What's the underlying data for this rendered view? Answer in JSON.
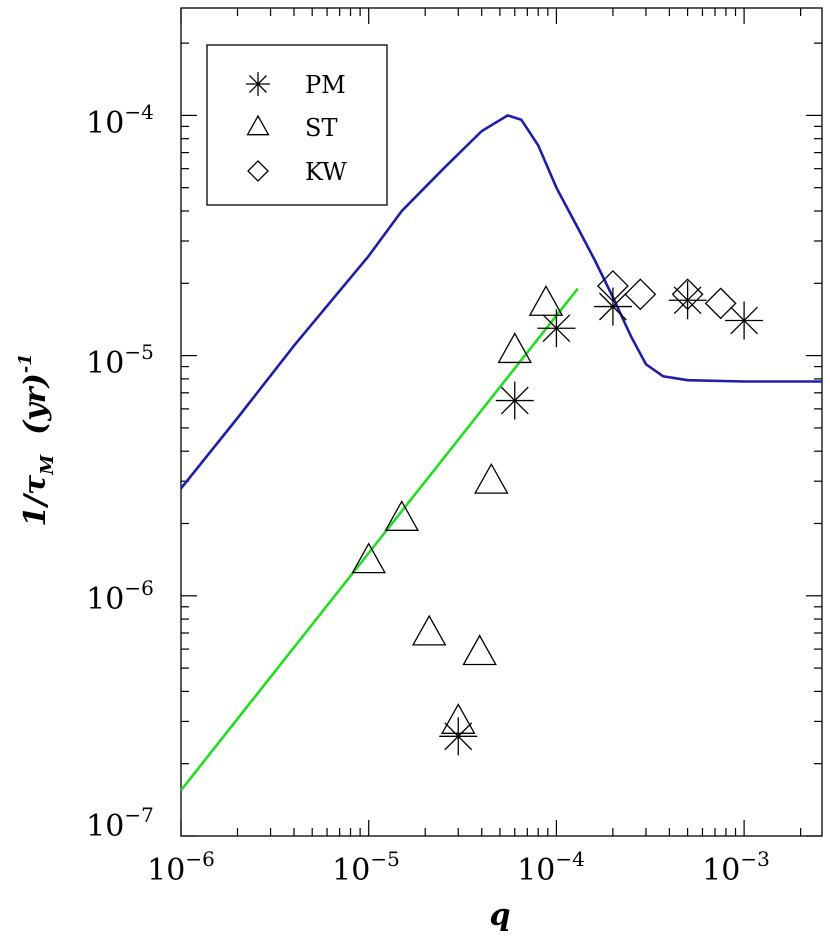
{
  "chart_data": {
    "type": "scatter",
    "xscale": "log",
    "yscale": "log",
    "xlim": [
      1e-06,
      0.0026
    ],
    "ylim": [
      1e-07,
      0.00028
    ],
    "xlabel": "q",
    "ylabel": {
      "prefix": "1/τ",
      "subscript": "M",
      "unit_open": "(yr)",
      "exponent": "-1"
    },
    "x_ticks": [
      {
        "base": "10",
        "exp": "−6",
        "value": 1e-06
      },
      {
        "base": "10",
        "exp": "−5",
        "value": 1e-05
      },
      {
        "base": "10",
        "exp": "−4",
        "value": 0.0001
      },
      {
        "base": "10",
        "exp": "−3",
        "value": 0.001
      }
    ],
    "y_ticks": [
      {
        "base": "10",
        "exp": "−7",
        "value": 1e-07
      },
      {
        "base": "10",
        "exp": "−6",
        "value": 1e-06
      },
      {
        "base": "10",
        "exp": "−5",
        "value": 1e-05
      },
      {
        "base": "10",
        "exp": "−4",
        "value": 0.0001
      }
    ],
    "legend": {
      "position": "top-left",
      "entries": [
        {
          "label": "PM",
          "marker": "asterisk"
        },
        {
          "label": "ST",
          "marker": "triangle"
        },
        {
          "label": "KW",
          "marker": "diamond"
        }
      ]
    },
    "series": [
      {
        "name": "PM",
        "marker": "asterisk",
        "points": [
          [
            3e-05,
            2.6e-07
          ],
          [
            6e-05,
            6.5e-06
          ],
          [
            0.0001,
            1.3e-05
          ],
          [
            0.0002,
            1.6e-05
          ],
          [
            0.0005,
            1.7e-05
          ],
          [
            0.001,
            1.4e-05
          ]
        ]
      },
      {
        "name": "ST",
        "marker": "triangle",
        "points": [
          [
            3e-05,
            3e-07
          ],
          [
            2.1e-05,
            7e-07
          ],
          [
            3.9e-05,
            5.8e-07
          ],
          [
            1e-05,
            1.4e-06
          ],
          [
            1.5e-05,
            2.1e-06
          ],
          [
            4.5e-05,
            3e-06
          ],
          [
            6e-05,
            1.05e-05
          ],
          [
            8.8e-05,
            1.65e-05
          ]
        ]
      },
      {
        "name": "KW",
        "marker": "diamond",
        "points": [
          [
            0.0002,
            1.95e-05
          ],
          [
            0.00028,
            1.8e-05
          ],
          [
            0.0005,
            1.8e-05
          ],
          [
            0.00075,
            1.65e-05
          ]
        ]
      },
      {
        "name": "model-blue",
        "type": "line",
        "color": "#1e1eaa",
        "points": [
          [
            1e-06,
            2.8e-06
          ],
          [
            2e-06,
            5.5e-06
          ],
          [
            4e-06,
            1.1e-05
          ],
          [
            1e-05,
            2.6e-05
          ],
          [
            1.5e-05,
            4e-05
          ],
          [
            2.5e-05,
            6e-05
          ],
          [
            4e-05,
            8.6e-05
          ],
          [
            5.5e-05,
            0.0001
          ],
          [
            6.5e-05,
            9.6e-05
          ],
          [
            8e-05,
            7.5e-05
          ],
          [
            0.0001,
            5e-05
          ],
          [
            0.00013,
            3.4e-05
          ],
          [
            0.00016,
            2.5e-05
          ],
          [
            0.0002,
            1.75e-05
          ],
          [
            0.00025,
            1.2e-05
          ],
          [
            0.0003,
            9.2e-06
          ],
          [
            0.00037,
            8.2e-06
          ],
          [
            0.0005,
            7.9e-06
          ],
          [
            0.001,
            7.8e-06
          ],
          [
            0.0026,
            7.8e-06
          ]
        ]
      },
      {
        "name": "fit-green",
        "type": "line",
        "color": "#22dd22",
        "points": [
          [
            1e-06,
            1.55e-07
          ],
          [
            0.00013,
            1.9e-05
          ]
        ]
      }
    ]
  },
  "colors": {
    "blue_curve": "#1e1eaa",
    "green_line": "#22dd22",
    "axis": "#000000"
  }
}
